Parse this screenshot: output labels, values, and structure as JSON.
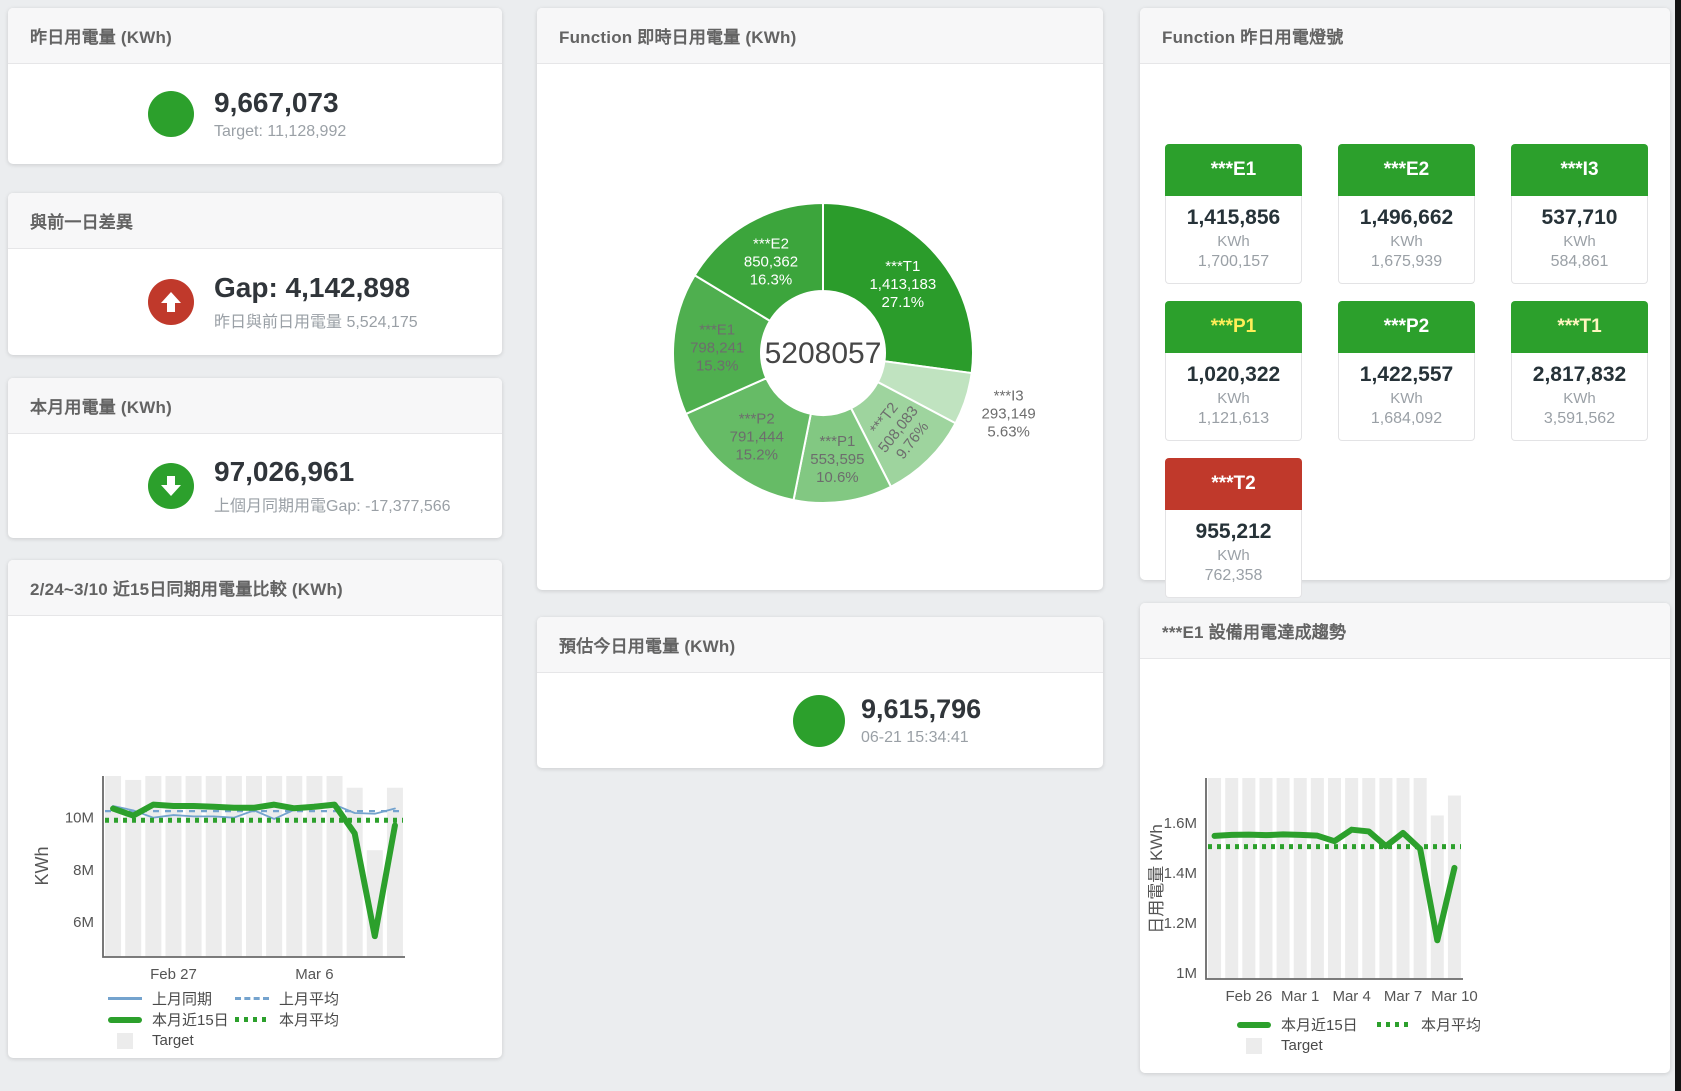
{
  "colors": {
    "green": "#2ca02c",
    "red": "#c0392b",
    "blue": "#74a3ce",
    "bar_gray": "#ececec",
    "value_dark": "#30353a",
    "subtitle_gray": "#9aa0a6"
  },
  "cards": {
    "yesterday": {
      "title": "昨日用電量 (KWh)",
      "value": "9,667,073",
      "subtitle": "Target: 11,128,992"
    },
    "diff_prev_day": {
      "title": "與前一日差異",
      "value": "Gap: 4,142,898",
      "subtitle": "昨日與前日用電量 5,524,175"
    },
    "month": {
      "title": "本月用電量 (KWh)",
      "value": "97,026,961",
      "subtitle": "上個月同期用電Gap: -17,377,566"
    },
    "estimate_today": {
      "title": "預估今日用電量 (KWh)",
      "value": "9,615,796",
      "subtitle": "06-21 15:34:41"
    },
    "realtime_pie": {
      "title": "Function 即時日用電量 (KWh)"
    },
    "lights": {
      "title": "Function 昨日用電燈號",
      "tiles": [
        {
          "label": "***E1",
          "value": "1,415,856",
          "unit": "KWh",
          "target": "1,700,157",
          "header_color": "#2ca02c",
          "label_color": "#ffffff"
        },
        {
          "label": "***E2",
          "value": "1,496,662",
          "unit": "KWh",
          "target": "1,675,939",
          "header_color": "#2ca02c",
          "label_color": "#ffffff"
        },
        {
          "label": "***I3",
          "value": "537,710",
          "unit": "KWh",
          "target": "584,861",
          "header_color": "#2ca02c",
          "label_color": "#ffffff"
        },
        {
          "label": "***P1",
          "value": "1,020,322",
          "unit": "KWh",
          "target": "1,121,613",
          "header_color": "#2ca02c",
          "label_color": "#ffee58"
        },
        {
          "label": "***P2",
          "value": "1,422,557",
          "unit": "KWh",
          "target": "1,684,092",
          "header_color": "#2ca02c",
          "label_color": "#ffffff"
        },
        {
          "label": "***T1",
          "value": "2,817,832",
          "unit": "KWh",
          "target": "3,591,562",
          "header_color": "#2ca02c",
          "label_color": "#fff6c0"
        },
        {
          "label": "***T2",
          "value": "955,212",
          "unit": "KWh",
          "target": "762,358",
          "header_color": "#c0392b",
          "label_color": "#ffffff"
        }
      ]
    },
    "compare_15d": {
      "title": "2/24~3/10 近15日同期用電量比較 (KWh)"
    },
    "e1_trend": {
      "title": "***E1 設備用電達成趨勢"
    }
  },
  "chart_data": [
    {
      "type": "pie",
      "title": "Function 即時日用電量 (KWh)",
      "center_label": "5208057",
      "slices": [
        {
          "name": "***T1",
          "value": 1413183,
          "value_label": "1,413,183",
          "pct_label": "27.1%",
          "color": "#2b9c2b",
          "text": "#ffffff"
        },
        {
          "name": "***I3",
          "value": 293149,
          "value_label": "293,149",
          "pct_label": "5.63%",
          "color": "#c0e3c0",
          "text": "#6d6d6d",
          "outside": true
        },
        {
          "name": "***T2",
          "value": 508083,
          "value_label": "508,083",
          "pct_label": "9.76%",
          "color": "#9ed49e",
          "text": "#6d6d6d",
          "rotate": -52
        },
        {
          "name": "***P1",
          "value": 553595,
          "value_label": "553,595",
          "pct_label": "10.6%",
          "color": "#82c882",
          "text": "#6d6d6d"
        },
        {
          "name": "***P2",
          "value": 791444,
          "value_label": "791,444",
          "pct_label": "15.2%",
          "color": "#66bb66",
          "text": "#6d6d6d"
        },
        {
          "name": "***E1",
          "value": 798241,
          "value_label": "798,241",
          "pct_label": "15.3%",
          "color": "#4faf4f",
          "text": "#6d6d6d"
        },
        {
          "name": "***E2",
          "value": 850362,
          "value_label": "850,362",
          "pct_label": "16.3%",
          "color": "#3ca53c",
          "text": "#ffffff"
        }
      ]
    },
    {
      "type": "line+bar",
      "title": "2/24~3/10 近15日同期用電量比較 (KWh)",
      "ylabel": "KWh",
      "unit": "M",
      "ylim": [
        4.65,
        11.6
      ],
      "yticks": [
        {
          "v": 6,
          "label": "6M"
        },
        {
          "v": 8,
          "label": "8M"
        },
        {
          "v": 10,
          "label": "10M"
        }
      ],
      "categories": [
        "2/24",
        "2/25",
        "2/26",
        "2/27",
        "2/28",
        "3/1",
        "3/2",
        "3/3",
        "3/4",
        "3/5",
        "3/6",
        "3/7",
        "3/8",
        "3/9",
        "3/10"
      ],
      "xticks": [
        {
          "index": 3,
          "label": "Feb 27"
        },
        {
          "index": 10,
          "label": "Mar 6"
        }
      ],
      "series": [
        {
          "name": "Target",
          "kind": "bar",
          "color": "#ececec",
          "values": [
            11.6,
            11.45,
            11.6,
            11.6,
            11.6,
            11.6,
            11.6,
            11.6,
            11.6,
            11.6,
            11.6,
            11.6,
            11.15,
            8.75,
            11.15
          ]
        },
        {
          "name": "上月平均",
          "kind": "hline-dashed",
          "color": "#74a3ce",
          "value": 10.25
        },
        {
          "name": "上月同期",
          "kind": "line",
          "color": "#74a3ce",
          "width": 1.8,
          "values": [
            10.45,
            10.28,
            10.0,
            10.1,
            10.05,
            10.05,
            10.0,
            10.28,
            9.95,
            10.3,
            10.5,
            10.5,
            10.18,
            10.15,
            10.35
          ]
        },
        {
          "name": "本月平均",
          "kind": "hline-dotted",
          "color": "#2ca02c",
          "value": 9.9
        },
        {
          "name": "本月近15日",
          "kind": "line",
          "color": "#2ca02c",
          "width": 6,
          "values": [
            10.35,
            10.08,
            10.5,
            10.45,
            10.45,
            10.42,
            10.38,
            10.38,
            10.5,
            10.36,
            10.42,
            10.5,
            9.4,
            5.45,
            9.7
          ]
        }
      ],
      "legend": [
        {
          "label": "上月同期",
          "swatch": "blue-line"
        },
        {
          "label": "上月平均",
          "swatch": "blue-dashed"
        },
        {
          "label": "本月近15日",
          "swatch": "green-thick"
        },
        {
          "label": "本月平均",
          "swatch": "green-dotted"
        },
        {
          "label": "Target",
          "swatch": "gray-square"
        }
      ]
    },
    {
      "type": "line+bar",
      "title": "***E1 設備用電達成趨勢",
      "ylabel": "日用電量 KWh",
      "unit": "M",
      "ylim": [
        0.975,
        1.78
      ],
      "yticks": [
        {
          "v": 1,
          "label": "1M"
        },
        {
          "v": 1.2,
          "label": "1.2M"
        },
        {
          "v": 1.4,
          "label": "1.4M"
        },
        {
          "v": 1.6,
          "label": "1.6M"
        }
      ],
      "categories": [
        "2/24",
        "2/25",
        "2/26",
        "2/27",
        "2/28",
        "3/1",
        "3/2",
        "3/3",
        "3/4",
        "3/5",
        "3/6",
        "3/7",
        "3/8",
        "3/9",
        "3/10"
      ],
      "xticks": [
        {
          "index": 2,
          "label": "Feb 26"
        },
        {
          "index": 5,
          "label": "Mar 1"
        },
        {
          "index": 8,
          "label": "Mar 4"
        },
        {
          "index": 11,
          "label": "Mar 7"
        },
        {
          "index": 14,
          "label": "Mar 10"
        }
      ],
      "series": [
        {
          "name": "Target",
          "kind": "bar",
          "color": "#ececec",
          "values": [
            1.78,
            1.78,
            1.78,
            1.78,
            1.78,
            1.78,
            1.78,
            1.78,
            1.78,
            1.78,
            1.78,
            1.78,
            1.78,
            1.63,
            1.71
          ]
        },
        {
          "name": "本月平均",
          "kind": "hline-dotted",
          "color": "#2ca02c",
          "value": 1.505
        },
        {
          "name": "本月近15日",
          "kind": "line",
          "color": "#2ca02c",
          "width": 6,
          "values": [
            1.548,
            1.552,
            1.553,
            1.551,
            1.554,
            1.552,
            1.549,
            1.527,
            1.573,
            1.566,
            1.507,
            1.56,
            1.496,
            1.13,
            1.42
          ]
        }
      ],
      "legend": [
        {
          "label": "本月近15日",
          "swatch": "green-thick"
        },
        {
          "label": "本月平均",
          "swatch": "green-dotted"
        },
        {
          "label": "Target",
          "swatch": "gray-square"
        }
      ]
    }
  ]
}
